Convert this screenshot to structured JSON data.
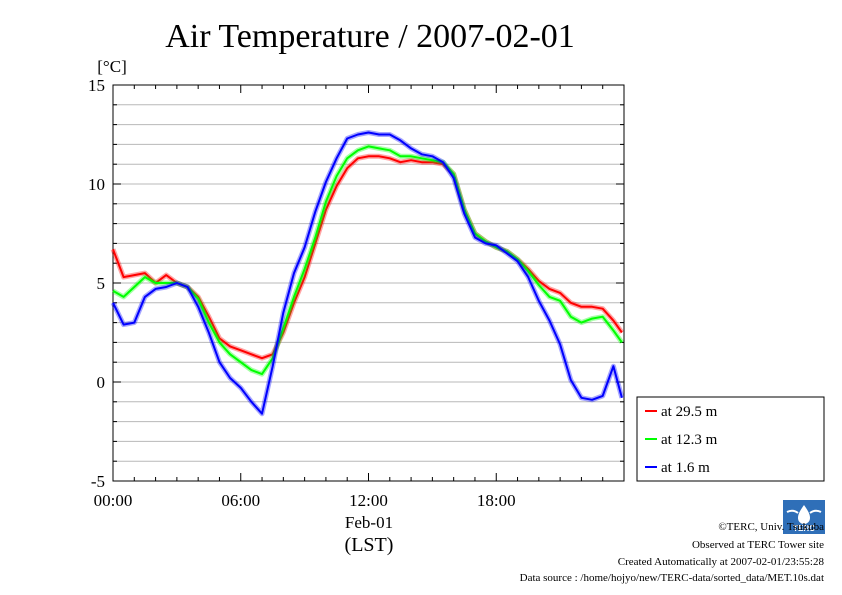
{
  "chart_data": {
    "type": "line",
    "title": "Air Temperature / 2007-02-01",
    "ylabel": "[°C]",
    "xlabel": "Feb-01",
    "xlabel2": "(LST)",
    "x_tick_labels": [
      "00:00",
      "06:00",
      "12:00",
      "18:00"
    ],
    "x_tick_hours": [
      0,
      6,
      12,
      18
    ],
    "y_tick_labels": [
      "15",
      "10",
      "5",
      "0",
      "-5"
    ],
    "y_ticks": [
      15,
      10,
      5,
      0,
      -5
    ],
    "xlim": [
      0,
      24
    ],
    "ylim": [
      -5,
      15
    ],
    "grid": true,
    "legend_position": "right",
    "x_hours": [
      0,
      0.5,
      1,
      1.5,
      2,
      2.5,
      3,
      3.5,
      4,
      4.5,
      5,
      5.5,
      6,
      6.5,
      7,
      7.5,
      8,
      8.5,
      9,
      9.5,
      10,
      10.5,
      11,
      11.5,
      12,
      12.5,
      13,
      13.5,
      14,
      14.5,
      15,
      15.5,
      16,
      16.5,
      17,
      17.5,
      18,
      18.5,
      19,
      19.5,
      20,
      20.5,
      21,
      21.5,
      22,
      22.5,
      23,
      23.5,
      23.9
    ],
    "series": [
      {
        "name": "at 29.5 m",
        "color": "#ff0000",
        "values": [
          6.7,
          5.3,
          5.4,
          5.5,
          5.0,
          5.4,
          5.0,
          4.8,
          4.3,
          3.3,
          2.2,
          1.8,
          1.6,
          1.4,
          1.2,
          1.4,
          2.5,
          4.0,
          5.3,
          7.0,
          8.7,
          9.9,
          10.8,
          11.3,
          11.4,
          11.4,
          11.3,
          11.1,
          11.2,
          11.1,
          11.1,
          11.0,
          10.5,
          8.7,
          7.5,
          7.1,
          6.8,
          6.6,
          6.2,
          5.7,
          5.1,
          4.7,
          4.5,
          4.0,
          3.8,
          3.8,
          3.7,
          3.1,
          2.5
        ]
      },
      {
        "name": "at 12.3 m",
        "color": "#00ff00",
        "values": [
          4.6,
          4.3,
          4.8,
          5.3,
          5.0,
          5.0,
          5.0,
          4.8,
          4.2,
          3.0,
          2.0,
          1.4,
          1.0,
          0.6,
          0.4,
          1.2,
          2.7,
          4.3,
          5.7,
          7.3,
          9.1,
          10.4,
          11.3,
          11.7,
          11.9,
          11.8,
          11.7,
          11.4,
          11.4,
          11.3,
          11.2,
          11.1,
          10.5,
          8.7,
          7.5,
          7.1,
          6.8,
          6.6,
          6.2,
          5.6,
          4.9,
          4.3,
          4.1,
          3.3,
          3.0,
          3.2,
          3.3,
          2.6,
          2.0
        ]
      },
      {
        "name": "at 1.6 m",
        "color": "#0000ff",
        "values": [
          4.0,
          2.9,
          3.0,
          4.3,
          4.7,
          4.8,
          5.0,
          4.8,
          3.8,
          2.5,
          1.0,
          0.2,
          -0.3,
          -1.0,
          -1.6,
          0.8,
          3.5,
          5.5,
          6.8,
          8.6,
          10.1,
          11.3,
          12.3,
          12.5,
          12.6,
          12.5,
          12.5,
          12.2,
          11.8,
          11.5,
          11.4,
          11.1,
          10.3,
          8.5,
          7.3,
          7.0,
          6.9,
          6.5,
          6.1,
          5.3,
          4.1,
          3.1,
          1.9,
          0.1,
          -0.8,
          -0.9,
          -0.7,
          0.8,
          -0.8
        ]
      }
    ]
  },
  "footer": {
    "copyright": "©TERC, Univ. Tsukuba",
    "observed": "Observed at TERC Tower site",
    "created": "Created Automatically at 2007-02-01/23:55:28",
    "source": "Data source : /home/hojyo/new/TERC-data/sorted_data/MET.10s.dat",
    "logo_text": "TERC"
  }
}
